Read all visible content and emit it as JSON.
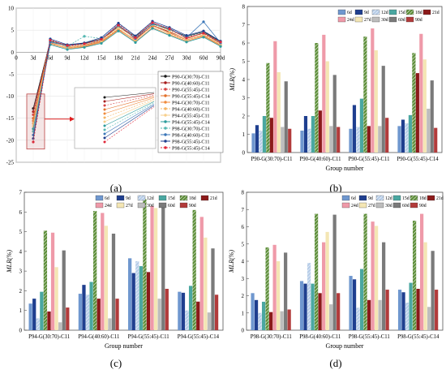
{
  "panels": {
    "a": {
      "caption": "(a)"
    },
    "b": {
      "caption": "(b)"
    },
    "c": {
      "caption": "(c)"
    },
    "d": {
      "caption": "(d)"
    }
  },
  "chart_data": [
    {
      "panel": "a",
      "type": "line",
      "x": [
        "0",
        "3d",
        "6d",
        "9d",
        "12d",
        "15d",
        "18d",
        "21d",
        "24d",
        "27d",
        "30d",
        "60d",
        "90d"
      ],
      "ylim": [
        -25,
        10
      ],
      "yticks": [
        "10",
        "5",
        "0",
        "-5",
        "-10",
        "-15",
        "-20",
        "-25"
      ],
      "grid": true,
      "legend_position": "center-right",
      "inset": true,
      "series": [
        {
          "name": "P90-G(30:70)-C11",
          "color": "#1a1a1a",
          "marker": "square",
          "values": [
            null,
            -12.8,
            2.5,
            1.6,
            2.0,
            3.0,
            5.8,
            3.6,
            6.4,
            5.2,
            3.6,
            4.6,
            2.4
          ]
        },
        {
          "name": "P90-G(40:60)-C11",
          "color": "#a61c1c",
          "marker": "circle",
          "values": [
            null,
            -13.5,
            2.1,
            1.2,
            1.6,
            2.6,
            6.0,
            3.0,
            6.1,
            4.6,
            3.1,
            4.4,
            2.0
          ]
        },
        {
          "name": "P90-G(55:45)-C11",
          "color": "#d64545",
          "marker": "triangle-up",
          "values": [
            null,
            -14.2,
            2.8,
            1.4,
            1.8,
            2.8,
            6.4,
            3.4,
            6.8,
            5.0,
            3.4,
            4.2,
            1.8
          ]
        },
        {
          "name": "P90-G(55:45)-C14",
          "color": "#e3702a",
          "marker": "triangle-down",
          "values": [
            null,
            -15.0,
            2.4,
            1.0,
            1.4,
            2.4,
            5.2,
            2.8,
            6.0,
            4.4,
            2.8,
            3.8,
            1.6
          ]
        },
        {
          "name": "P94-G(30:70)-C11",
          "color": "#f08a3c",
          "marker": "triangle-left",
          "values": [
            null,
            -15.6,
            1.9,
            0.8,
            1.2,
            2.2,
            5.0,
            2.4,
            5.6,
            4.0,
            2.5,
            3.6,
            1.4
          ]
        },
        {
          "name": "P94-G(40:60)-C11",
          "color": "#f5b463",
          "marker": "triangle-right",
          "values": [
            null,
            -16.2,
            2.0,
            0.9,
            1.5,
            2.5,
            5.4,
            2.6,
            6.2,
            4.2,
            2.7,
            3.9,
            1.7
          ]
        },
        {
          "name": "P94-G(55:45)-C11",
          "color": "#f7cf8c",
          "marker": "diamond",
          "values": [
            null,
            -16.8,
            2.2,
            1.1,
            1.7,
            2.7,
            5.6,
            3.2,
            6.6,
            4.8,
            3.0,
            4.0,
            1.9
          ]
        },
        {
          "name": "P94-G(55:45)-C14",
          "color": "#2c9c9c",
          "marker": "pentagon",
          "values": [
            null,
            -17.4,
            1.7,
            0.6,
            1.1,
            2.0,
            4.8,
            2.2,
            5.4,
            3.8,
            2.3,
            3.4,
            1.3
          ]
        },
        {
          "name": "P98-G(30:70)-C11",
          "color": "#56b8b2",
          "marker": "star",
          "values": [
            null,
            -18.0,
            2.6,
            1.3,
            3.6,
            3.1,
            5.9,
            3.5,
            6.3,
            5.1,
            3.5,
            4.5,
            2.2
          ]
        },
        {
          "name": "P98-G(40:60)-C11",
          "color": "#3a76b8",
          "marker": "hexagon",
          "values": [
            null,
            -18.8,
            2.3,
            1.5,
            1.9,
            2.9,
            6.2,
            3.1,
            6.5,
            5.4,
            3.3,
            6.9,
            2.1
          ]
        },
        {
          "name": "P98-G(55:45)-C11",
          "color": "#1f3f8f",
          "marker": "circle-filled",
          "values": [
            null,
            -19.6,
            3.0,
            1.7,
            2.1,
            3.3,
            6.6,
            3.7,
            7.0,
            5.6,
            3.8,
            4.8,
            2.5
          ]
        },
        {
          "name": "P98-G(55:45)-C14",
          "color": "#e0283a",
          "marker": "asterisk",
          "values": [
            null,
            -20.4,
            2.7,
            1.5,
            1.9,
            2.9,
            6.1,
            3.3,
            6.7,
            5.3,
            3.2,
            4.3,
            2.3
          ]
        }
      ]
    },
    {
      "panel": "b",
      "type": "bar",
      "ylabel": "MLR(%)",
      "xlabel": "Group number",
      "ylim": [
        0,
        8
      ],
      "yticks": [
        "0",
        "1",
        "2",
        "3",
        "4",
        "5",
        "6",
        "7",
        "8"
      ],
      "categories": [
        "P90-G(30:70)-C11",
        "P90-G(40:60)-C11",
        "P90-G(55:45)-C11",
        "P90-G(55:45)-C14"
      ],
      "series": [
        {
          "name": "6d",
          "values": [
            1.05,
            1.2,
            1.3,
            1.45
          ]
        },
        {
          "name": "9d",
          "values": [
            1.5,
            2.0,
            2.6,
            1.8
          ]
        },
        {
          "name": "12d",
          "values": [
            1.2,
            1.3,
            1.4,
            1.6
          ]
        },
        {
          "name": "15d",
          "values": [
            2.0,
            2.0,
            2.95,
            2.05
          ]
        },
        {
          "name": "18d",
          "values": [
            4.9,
            6.0,
            6.35,
            5.45
          ]
        },
        {
          "name": "21d",
          "values": [
            1.9,
            2.3,
            1.45,
            4.35
          ]
        },
        {
          "name": "24d",
          "values": [
            6.1,
            6.45,
            6.8,
            6.5
          ]
        },
        {
          "name": "27d",
          "values": [
            4.4,
            5.0,
            5.6,
            5.1
          ]
        },
        {
          "name": "30d",
          "values": [
            1.4,
            1.45,
            1.45,
            2.4
          ]
        },
        {
          "name": "60d",
          "values": [
            3.9,
            4.25,
            4.75,
            3.95
          ]
        },
        {
          "name": "90d",
          "values": [
            1.3,
            1.4,
            1.9,
            1.35
          ]
        }
      ]
    },
    {
      "panel": "c",
      "type": "bar",
      "ylabel": "MLR(%)",
      "xlabel": "Group number",
      "ylim": [
        0,
        7
      ],
      "yticks": [
        "0",
        "1",
        "2",
        "3",
        "4",
        "5",
        "6",
        "7"
      ],
      "categories": [
        "P94-G(30:70)-C11",
        "P94-G(40:60)-C11",
        "P94-G(55:45)-C11",
        "P94-G(55:45)-C14"
      ],
      "series": [
        {
          "name": "6d",
          "values": [
            1.35,
            1.85,
            3.65,
            1.95
          ]
        },
        {
          "name": "9d",
          "values": [
            1.6,
            2.3,
            2.9,
            1.9
          ]
        },
        {
          "name": "12d",
          "values": [
            0.6,
            1.8,
            3.5,
            1.0
          ]
        },
        {
          "name": "15d",
          "values": [
            1.95,
            2.45,
            3.25,
            2.25
          ]
        },
        {
          "name": "18d",
          "values": [
            5.05,
            6.05,
            6.65,
            6.1
          ]
        },
        {
          "name": "21d",
          "values": [
            0.95,
            1.6,
            2.95,
            1.45
          ]
        },
        {
          "name": "24d",
          "values": [
            4.95,
            5.95,
            6.3,
            5.75
          ]
        },
        {
          "name": "27d",
          "values": [
            3.2,
            5.3,
            6.2,
            4.7
          ]
        },
        {
          "name": "30d",
          "values": [
            0.4,
            0.6,
            1.6,
            0.9
          ]
        },
        {
          "name": "60d",
          "values": [
            4.05,
            4.9,
            6.25,
            4.15
          ]
        },
        {
          "name": "90d",
          "values": [
            1.15,
            1.6,
            2.1,
            1.8
          ]
        }
      ]
    },
    {
      "panel": "d",
      "type": "bar",
      "ylabel": "MLR(%)",
      "xlabel": "Group number",
      "ylim": [
        0,
        8
      ],
      "yticks": [
        "0",
        "1",
        "2",
        "3",
        "4",
        "5",
        "6",
        "7",
        "8"
      ],
      "categories": [
        "P98-G(30:70)-C11",
        "P98-G(40:60)-C11",
        "P98-G(55:45)-C11",
        "P98-G(55:45)-C14"
      ],
      "series": [
        {
          "name": "6d",
          "values": [
            2.15,
            2.85,
            3.15,
            2.35
          ]
        },
        {
          "name": "9d",
          "values": [
            1.75,
            2.7,
            2.95,
            2.2
          ]
        },
        {
          "name": "12d",
          "values": [
            1.0,
            3.9,
            1.3,
            1.6
          ]
        },
        {
          "name": "15d",
          "values": [
            1.65,
            2.7,
            3.55,
            2.75
          ]
        },
        {
          "name": "18d",
          "values": [
            4.8,
            6.75,
            6.75,
            6.35
          ]
        },
        {
          "name": "21d",
          "values": [
            1.05,
            2.15,
            1.75,
            2.4
          ]
        },
        {
          "name": "24d",
          "values": [
            4.95,
            5.1,
            6.3,
            6.75
          ]
        },
        {
          "name": "27d",
          "values": [
            4.0,
            5.7,
            6.05,
            5.1
          ]
        },
        {
          "name": "30d",
          "values": [
            1.1,
            1.5,
            1.75,
            1.35
          ]
        },
        {
          "name": "60d",
          "values": [
            4.5,
            6.7,
            5.1,
            4.6
          ]
        },
        {
          "name": "90d",
          "values": [
            1.2,
            2.15,
            2.35,
            2.35
          ]
        }
      ]
    }
  ],
  "bar_styles": [
    {
      "fill": "#6f97cf",
      "hatch": "none"
    },
    {
      "fill": "#1f3f8f",
      "hatch": "none"
    },
    {
      "fill": "#b7cde8",
      "hatch": "diag"
    },
    {
      "fill": "#4aa7a1",
      "hatch": "none"
    },
    {
      "fill": "#5e8f3a",
      "hatch": "diag"
    },
    {
      "fill": "#8b1a1a",
      "hatch": "none"
    },
    {
      "fill": "#ef9aa9",
      "hatch": "none"
    },
    {
      "fill": "#f4e6b4",
      "hatch": "none"
    },
    {
      "fill": "#bdbdbd",
      "hatch": "none"
    },
    {
      "fill": "#7a7a7a",
      "hatch": "none"
    },
    {
      "fill": "#b23b3b",
      "hatch": "none"
    }
  ]
}
